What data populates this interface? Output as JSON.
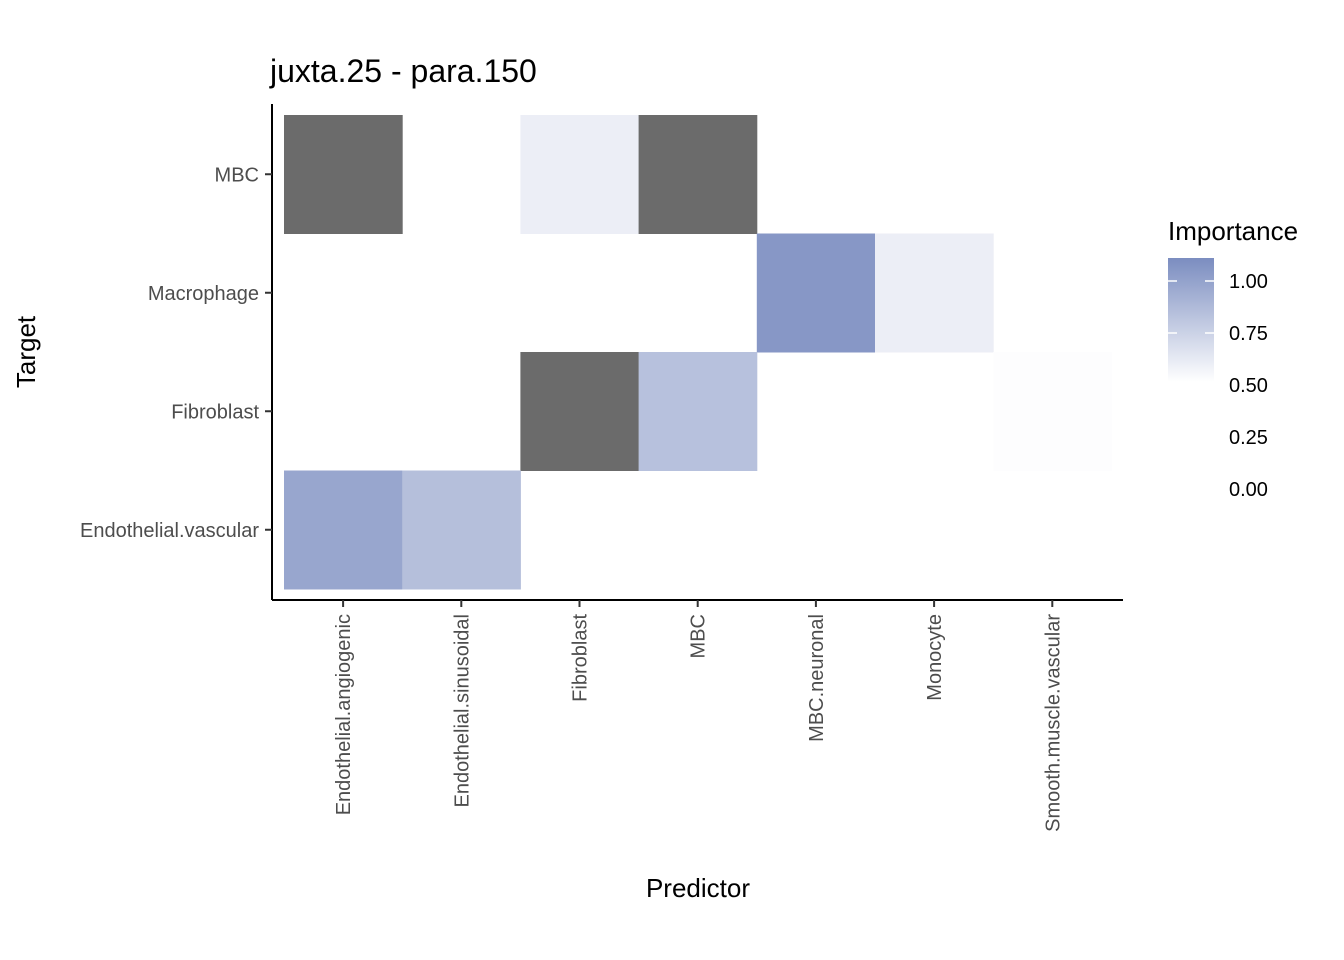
{
  "chart_data": {
    "type": "heatmap",
    "title": "juxta.25 - para.150",
    "xlabel": "Predictor",
    "ylabel": "Target",
    "x_categories": [
      "Endothelial.angiogenic",
      "Endothelial.sinusoidal",
      "Fibroblast",
      "MBC",
      "MBC.neuronal",
      "Monocyte",
      "Smooth.muscle.vascular"
    ],
    "y_categories": [
      "Endothelial.vascular",
      "Fibroblast",
      "Macrophage",
      "MBC"
    ],
    "cells": [
      {
        "x": "Endothelial.angiogenic",
        "y": "MBC",
        "value": null
      },
      {
        "x": "Fibroblast",
        "y": "MBC",
        "value": 0.58
      },
      {
        "x": "MBC",
        "y": "MBC",
        "value": null
      },
      {
        "x": "MBC.neuronal",
        "y": "Macrophage",
        "value": 1.0
      },
      {
        "x": "Monocyte",
        "y": "Macrophage",
        "value": 0.58
      },
      {
        "x": "Fibroblast",
        "y": "Fibroblast",
        "value": null
      },
      {
        "x": "MBC",
        "y": "Fibroblast",
        "value": 0.8
      },
      {
        "x": "Smooth.muscle.vascular",
        "y": "Fibroblast",
        "value": 0.51
      },
      {
        "x": "Endothelial.angiogenic",
        "y": "Endothelial.vascular",
        "value": 0.93
      },
      {
        "x": "Endothelial.sinusoidal",
        "y": "Endothelial.vascular",
        "value": 0.81
      }
    ],
    "legend": {
      "title": "Importance",
      "ticks": [
        "1.00",
        "0.75",
        "0.50",
        "0.25",
        "0.00"
      ],
      "range": [
        0.5,
        1.05
      ],
      "low_color": "#ffffff",
      "high_color": "#7b8dc0",
      "na_color": "#6b6b6b",
      "placement": "right"
    },
    "grid": false
  }
}
